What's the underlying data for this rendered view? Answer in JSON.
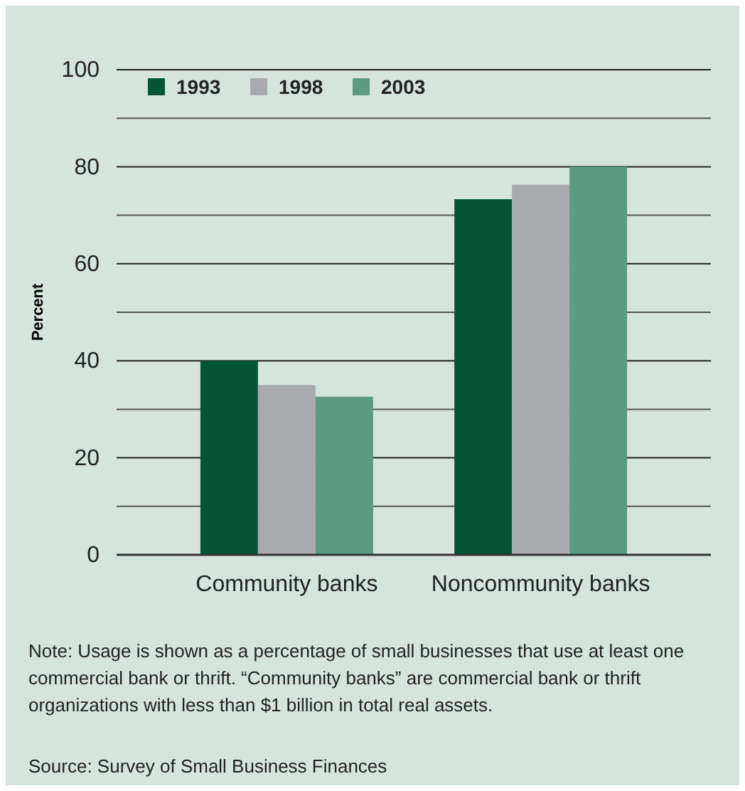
{
  "chart_data": {
    "type": "bar",
    "ylabel": "Percent",
    "categories": [
      "Community banks",
      "Noncommunity banks"
    ],
    "series": [
      {
        "name": "1993",
        "color": "#035535",
        "values": [
          40,
          73.3
        ]
      },
      {
        "name": "1998",
        "color": "#a9aaad",
        "values": [
          35,
          76.3
        ]
      },
      {
        "name": "2003",
        "color": "#5c9a83",
        "values": [
          32.6,
          80
        ]
      }
    ],
    "ylim": [
      0,
      100
    ],
    "yticks": [
      0,
      {
        "value": 10,
        "label": null
      },
      20,
      {
        "value": 30,
        "label": null
      },
      40,
      {
        "value": 50,
        "label": null
      },
      60,
      {
        "value": 70,
        "label": null
      },
      80,
      {
        "value": 90,
        "label": null
      },
      100
    ],
    "grid": "y",
    "legend": "top left",
    "annotations": [
      "Note: Usage is shown as a percentage of small businesses that use at least one commercial bank or thrift. “Community banks” are commercial bank or thrift organizations with less than $1 billion in total real assets.",
      "Source: Survey of Small Business Finances"
    ]
  }
}
